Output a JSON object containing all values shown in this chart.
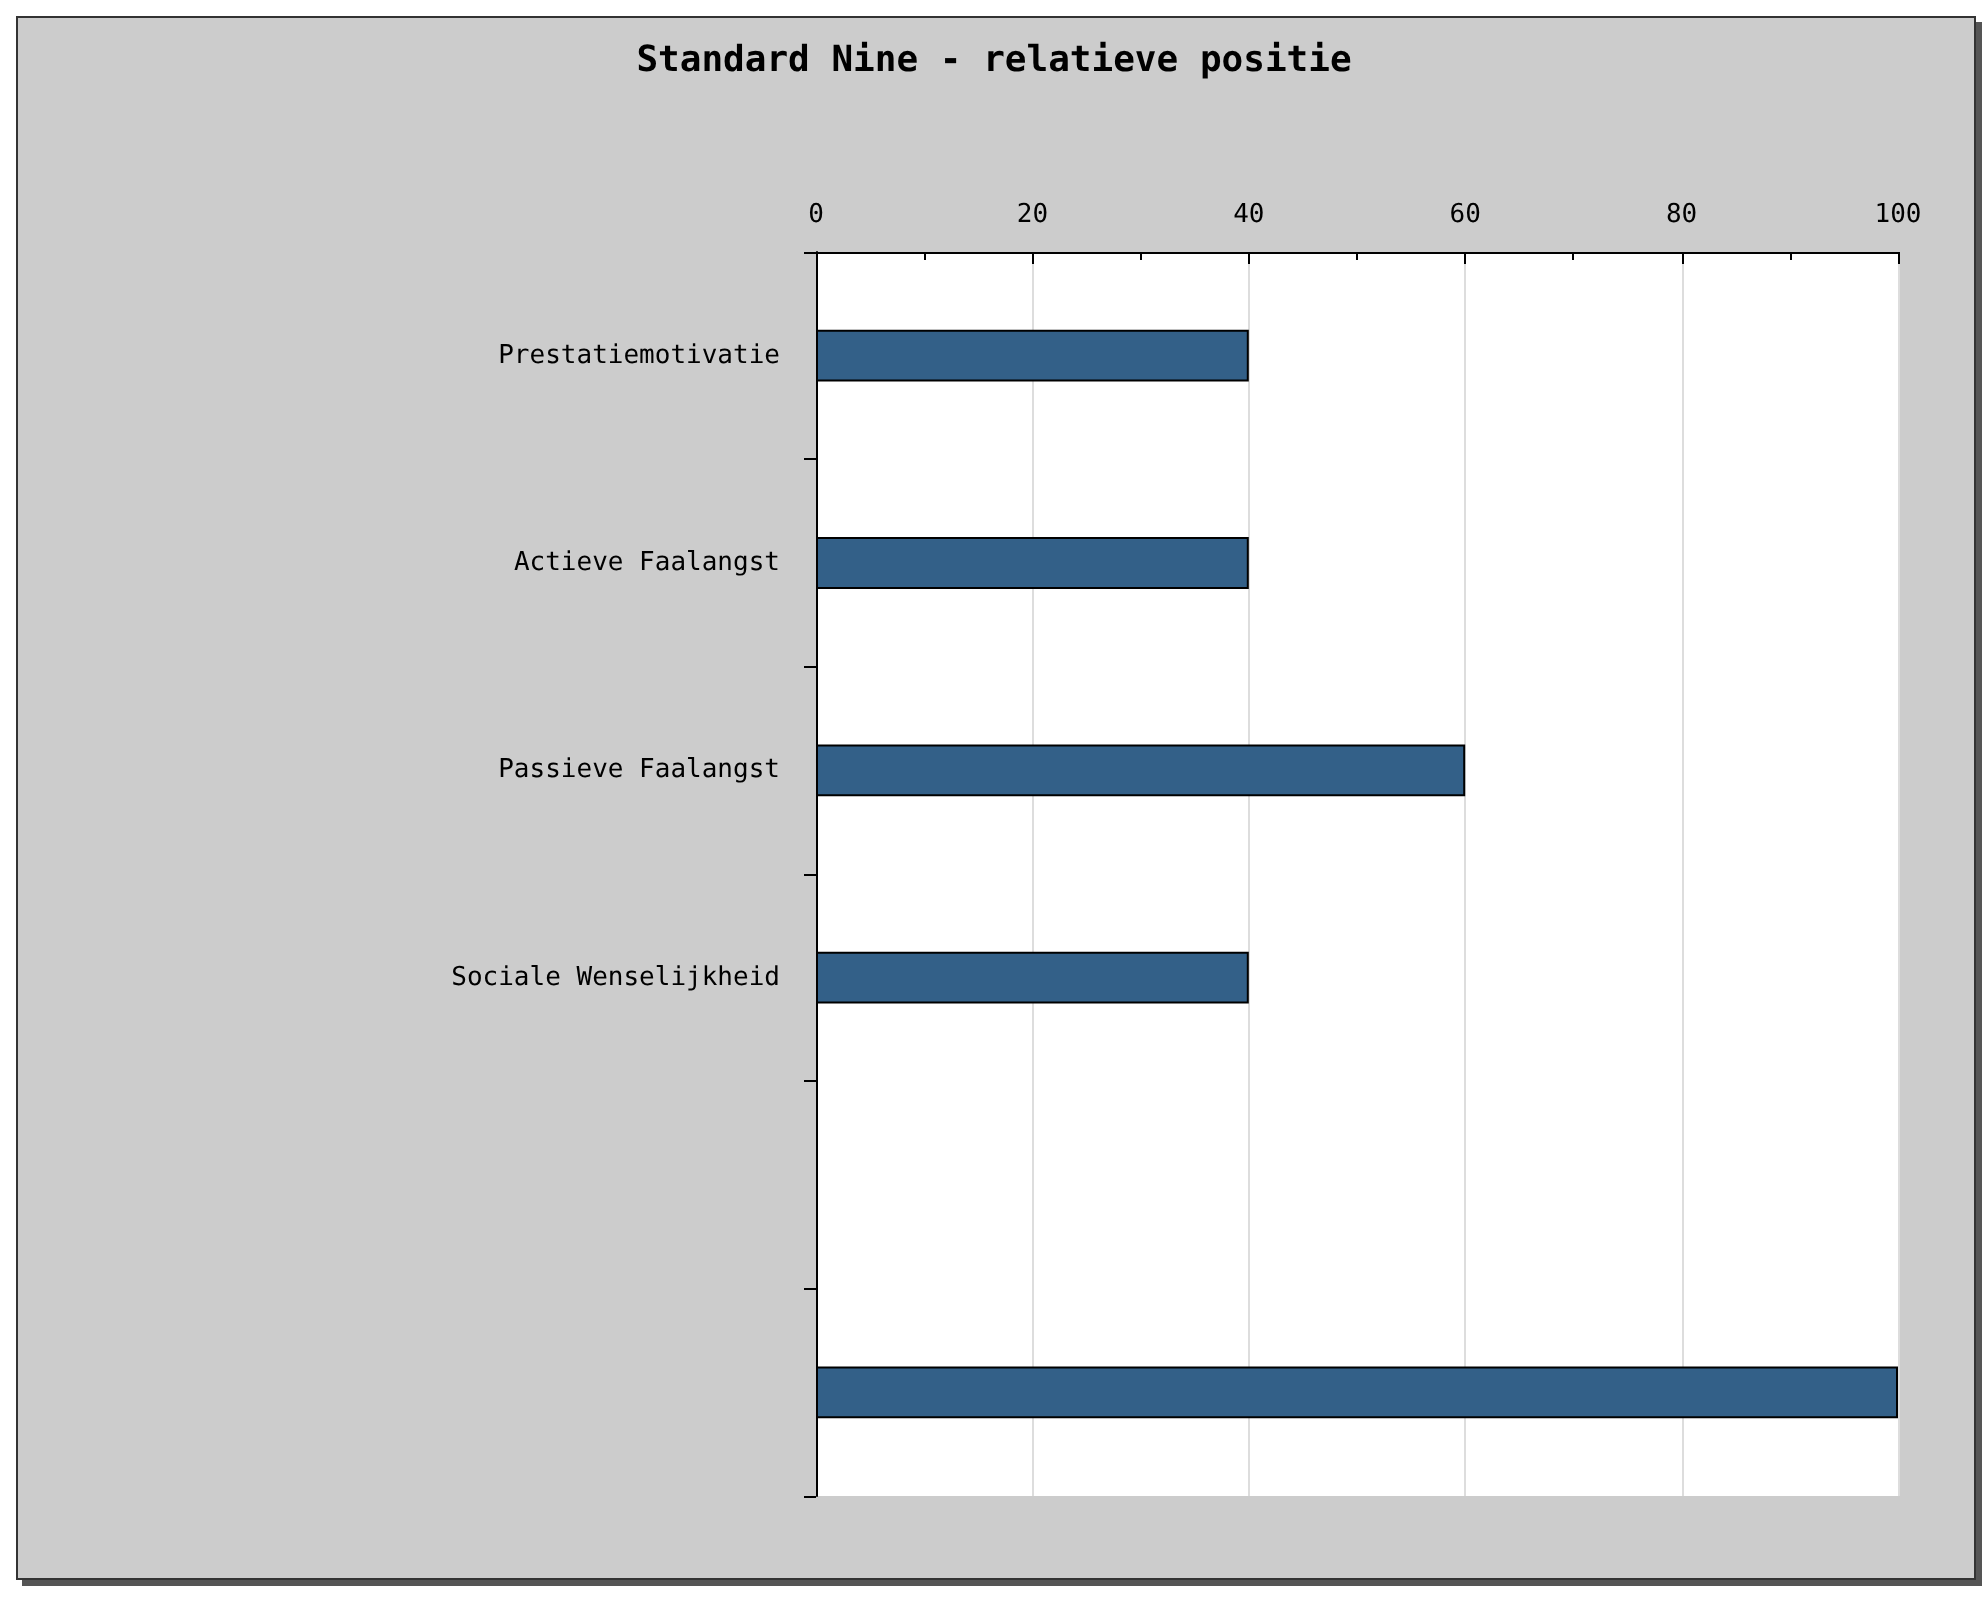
{
  "chart_data": {
    "type": "bar",
    "title": "Standard Nine - relatieve positie",
    "orientation": "horizontal",
    "categories": [
      "Prestatiemotivatie",
      "Actieve Faalangst",
      "Passieve Faalangst",
      "Sociale Wenselijkheid",
      null,
      null
    ],
    "values": [
      40,
      40,
      60,
      40,
      null,
      100
    ],
    "color": "#336088",
    "xlim": [
      0,
      100
    ],
    "xticks": [
      0,
      20,
      40,
      60,
      80,
      100
    ],
    "grid": "x"
  }
}
